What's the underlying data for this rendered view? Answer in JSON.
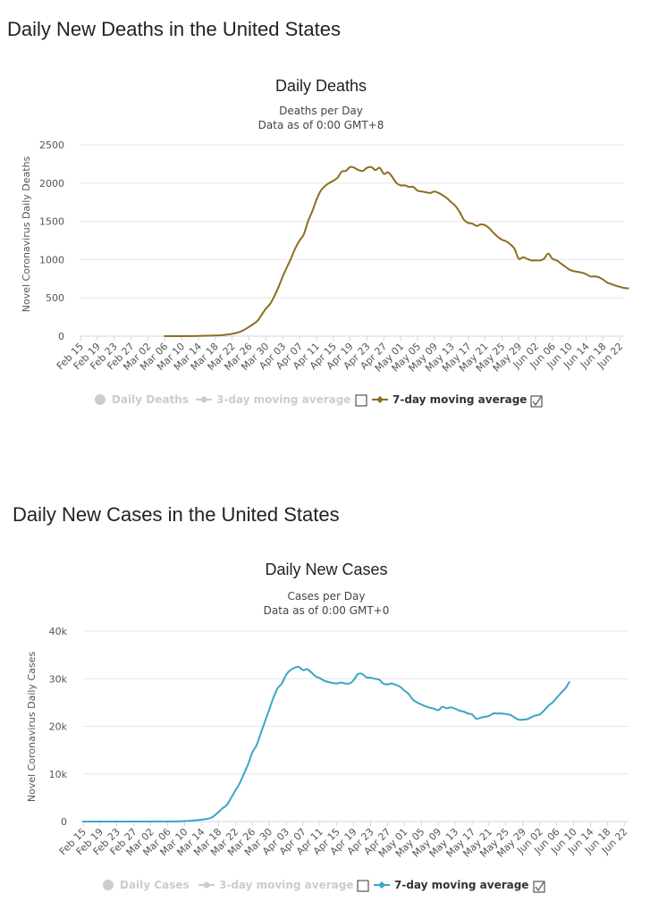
{
  "page": {
    "heading_deaths": "Daily New Deaths in the United States",
    "heading_cases": "Daily New Cases in the United States"
  },
  "chart_data": [
    {
      "type": "line",
      "title": "Daily Deaths",
      "subtitle1": "Deaths per Day",
      "subtitle2": "Data as of 0:00 GMT+8",
      "ylabel": "Novel Coronavirus Daily Deaths",
      "ylim": [
        0,
        2500
      ],
      "yticks": [
        "0",
        "500",
        "1000",
        "1500",
        "2000",
        "2500"
      ],
      "ytick_values": [
        0,
        500,
        1000,
        1500,
        2000,
        2500
      ],
      "start_date": "Feb 15",
      "n_days": 129,
      "xticks": [
        "Feb 15",
        "Feb 19",
        "Feb 23",
        "Feb 27",
        "Mar 02",
        "Mar 06",
        "Mar 10",
        "Mar 14",
        "Mar 18",
        "Mar 22",
        "Mar 26",
        "Mar 30",
        "Apr 03",
        "Apr 07",
        "Apr 11",
        "Apr 15",
        "Apr 19",
        "Apr 23",
        "Apr 27",
        "May 01",
        "May 05",
        "May 09",
        "May 13",
        "May 17",
        "May 21",
        "May 25",
        "May 29",
        "Jun 02",
        "Jun 06",
        "Jun 10",
        "Jun 14",
        "Jun 18",
        "Jun 22"
      ],
      "color": "#8d6e1f",
      "series_name": "7-day moving average",
      "points": [
        [
          20,
          0
        ],
        [
          28,
          3
        ],
        [
          32,
          8
        ],
        [
          34,
          15
        ],
        [
          36,
          30
        ],
        [
          38,
          60
        ],
        [
          40,
          120
        ],
        [
          42,
          200
        ],
        [
          43,
          280
        ],
        [
          44,
          360
        ],
        [
          45,
          420
        ],
        [
          46,
          520
        ],
        [
          47,
          640
        ],
        [
          48,
          780
        ],
        [
          49,
          900
        ],
        [
          50,
          1020
        ],
        [
          51,
          1150
        ],
        [
          52,
          1250
        ],
        [
          53,
          1330
        ],
        [
          54,
          1500
        ],
        [
          55,
          1630
        ],
        [
          56,
          1780
        ],
        [
          57,
          1900
        ],
        [
          58,
          1960
        ],
        [
          59,
          2000
        ],
        [
          60,
          2030
        ],
        [
          61,
          2070
        ],
        [
          62,
          2150
        ],
        [
          63,
          2160
        ],
        [
          64,
          2210
        ],
        [
          65,
          2200
        ],
        [
          66,
          2170
        ],
        [
          67,
          2160
        ],
        [
          68,
          2200
        ],
        [
          69,
          2210
        ],
        [
          70,
          2170
        ],
        [
          71,
          2200
        ],
        [
          72,
          2120
        ],
        [
          73,
          2140
        ],
        [
          74,
          2080
        ],
        [
          75,
          2000
        ],
        [
          76,
          1970
        ],
        [
          77,
          1970
        ],
        [
          78,
          1950
        ],
        [
          79,
          1950
        ],
        [
          80,
          1900
        ],
        [
          81,
          1890
        ],
        [
          82,
          1880
        ],
        [
          83,
          1870
        ],
        [
          84,
          1890
        ],
        [
          85,
          1870
        ],
        [
          86,
          1840
        ],
        [
          87,
          1800
        ],
        [
          88,
          1750
        ],
        [
          89,
          1700
        ],
        [
          90,
          1620
        ],
        [
          91,
          1520
        ],
        [
          92,
          1480
        ],
        [
          93,
          1470
        ],
        [
          94,
          1440
        ],
        [
          95,
          1460
        ],
        [
          96,
          1450
        ],
        [
          97,
          1410
        ],
        [
          98,
          1350
        ],
        [
          99,
          1300
        ],
        [
          100,
          1260
        ],
        [
          101,
          1240
        ],
        [
          102,
          1200
        ],
        [
          103,
          1140
        ],
        [
          104,
          1010
        ],
        [
          105,
          1030
        ],
        [
          106,
          1010
        ],
        [
          107,
          990
        ],
        [
          108,
          990
        ],
        [
          109,
          990
        ],
        [
          110,
          1010
        ],
        [
          111,
          1080
        ],
        [
          112,
          1010
        ],
        [
          113,
          990
        ],
        [
          114,
          950
        ],
        [
          115,
          910
        ],
        [
          116,
          870
        ],
        [
          117,
          850
        ],
        [
          118,
          840
        ],
        [
          119,
          830
        ],
        [
          120,
          810
        ],
        [
          121,
          780
        ],
        [
          122,
          780
        ],
        [
          123,
          770
        ],
        [
          124,
          740
        ],
        [
          125,
          700
        ],
        [
          126,
          680
        ],
        [
          127,
          660
        ],
        [
          128,
          645
        ],
        [
          129,
          630
        ],
        [
          130,
          625
        ]
      ],
      "legend": [
        "Daily Deaths",
        "3-day moving average",
        "7-day moving average"
      ]
    },
    {
      "type": "line",
      "title": "Daily New Cases",
      "subtitle1": "Cases per Day",
      "subtitle2": "Data as of 0:00 GMT+0",
      "ylabel": "Novel Coronavirus Daily Cases",
      "ylim": [
        0,
        40000
      ],
      "yticks": [
        "0",
        "10k",
        "20k",
        "30k",
        "40k"
      ],
      "ytick_values": [
        0,
        10000,
        20000,
        30000,
        40000
      ],
      "start_date": "Feb 15",
      "n_days": 129,
      "xticks": [
        "Feb 15",
        "Feb 19",
        "Feb 23",
        "Feb 27",
        "Mar 02",
        "Mar 06",
        "Mar 10",
        "Mar 14",
        "Mar 18",
        "Mar 22",
        "Mar 26",
        "Mar 30",
        "Apr 03",
        "Apr 07",
        "Apr 11",
        "Apr 15",
        "Apr 19",
        "Apr 23",
        "Apr 27",
        "May 01",
        "May 05",
        "May 09",
        "May 13",
        "May 17",
        "May 21",
        "May 25",
        "May 29",
        "Jun 02",
        "Jun 06",
        "Jun 10",
        "Jun 14",
        "Jun 18",
        "Jun 22"
      ],
      "color": "#3aa6c2",
      "series_name": "7-day moving average",
      "points": [
        [
          0,
          0
        ],
        [
          20,
          20
        ],
        [
          24,
          100
        ],
        [
          26,
          200
        ],
        [
          28,
          400
        ],
        [
          30,
          700
        ],
        [
          31,
          1200
        ],
        [
          32,
          2000
        ],
        [
          33,
          2800
        ],
        [
          34,
          3500
        ],
        [
          35,
          5000
        ],
        [
          36,
          6500
        ],
        [
          37,
          8000
        ],
        [
          38,
          10000
        ],
        [
          39,
          12000
        ],
        [
          40,
          14500
        ],
        [
          41,
          16000
        ],
        [
          42,
          18500
        ],
        [
          43,
          21000
        ],
        [
          44,
          23500
        ],
        [
          45,
          26000
        ],
        [
          46,
          28000
        ],
        [
          47,
          29000
        ],
        [
          48,
          30800
        ],
        [
          49,
          31800
        ],
        [
          50,
          32300
        ],
        [
          51,
          32500
        ],
        [
          52,
          31800
        ],
        [
          53,
          32000
        ],
        [
          54,
          31300
        ],
        [
          55,
          30500
        ],
        [
          56,
          30100
        ],
        [
          57,
          29600
        ],
        [
          58,
          29300
        ],
        [
          59,
          29100
        ],
        [
          60,
          29000
        ],
        [
          61,
          29200
        ],
        [
          62,
          29000
        ],
        [
          63,
          29000
        ],
        [
          64,
          29700
        ],
        [
          65,
          31000
        ],
        [
          66,
          31000
        ],
        [
          67,
          30300
        ],
        [
          68,
          30200
        ],
        [
          69,
          30000
        ],
        [
          70,
          29800
        ],
        [
          71,
          29000
        ],
        [
          72,
          28800
        ],
        [
          73,
          29000
        ],
        [
          74,
          28700
        ],
        [
          75,
          28300
        ],
        [
          76,
          27500
        ],
        [
          77,
          26800
        ],
        [
          78,
          25600
        ],
        [
          79,
          25000
        ],
        [
          80,
          24600
        ],
        [
          81,
          24200
        ],
        [
          82,
          23900
        ],
        [
          83,
          23700
        ],
        [
          84,
          23400
        ],
        [
          85,
          24100
        ],
        [
          86,
          23800
        ],
        [
          87,
          24000
        ],
        [
          88,
          23700
        ],
        [
          89,
          23300
        ],
        [
          90,
          23100
        ],
        [
          91,
          22700
        ],
        [
          92,
          22500
        ],
        [
          93,
          21600
        ],
        [
          94,
          21800
        ],
        [
          95,
          22000
        ],
        [
          96,
          22200
        ],
        [
          97,
          22700
        ],
        [
          98,
          22700
        ],
        [
          99,
          22700
        ],
        [
          100,
          22600
        ],
        [
          101,
          22400
        ],
        [
          102,
          21900
        ],
        [
          103,
          21400
        ],
        [
          104,
          21400
        ],
        [
          105,
          21500
        ],
        [
          106,
          21900
        ],
        [
          107,
          22300
        ],
        [
          108,
          22500
        ],
        [
          109,
          23300
        ],
        [
          110,
          24300
        ],
        [
          111,
          25000
        ],
        [
          112,
          26000
        ],
        [
          113,
          27000
        ],
        [
          114,
          27900
        ],
        [
          115,
          29300
        ]
      ],
      "legend": [
        "Daily Cases",
        "3-day moving average",
        "7-day moving average"
      ]
    }
  ]
}
